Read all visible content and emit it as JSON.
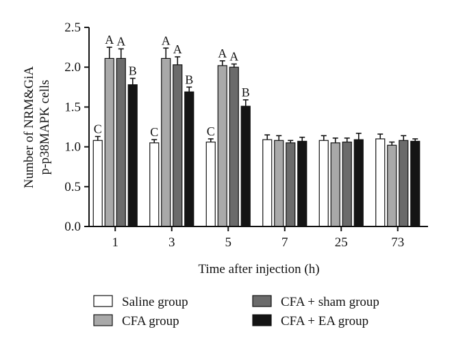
{
  "chart_data": {
    "type": "bar",
    "title": "",
    "xlabel": "Time after injection (h)",
    "ylabel_lines": [
      "Number of NRM&GiA",
      "p-p38MAPK cells"
    ],
    "ylim": [
      0,
      2.5
    ],
    "yticks": [
      "0.0",
      "0.5",
      "1.0",
      "1.5",
      "2.0",
      "2.5"
    ],
    "ytick_values": [
      0,
      0.5,
      1.0,
      1.5,
      2.0,
      2.5
    ],
    "categories": [
      "1",
      "3",
      "5",
      "7",
      "25",
      "73"
    ],
    "series": [
      {
        "name": "Saline group",
        "color": "#ffffff",
        "values": [
          1.08,
          1.05,
          1.06,
          1.09,
          1.08,
          1.1
        ],
        "errors": [
          0.05,
          0.04,
          0.04,
          0.06,
          0.06,
          0.06
        ],
        "letters": [
          "C",
          "C",
          "C",
          "",
          "",
          ""
        ]
      },
      {
        "name": "CFA group",
        "color": "#a9a9a9",
        "values": [
          2.11,
          2.11,
          2.02,
          1.08,
          1.05,
          1.02
        ],
        "errors": [
          0.14,
          0.13,
          0.06,
          0.06,
          0.06,
          0.04
        ],
        "letters": [
          "A",
          "A",
          "A",
          "",
          "",
          ""
        ]
      },
      {
        "name": "CFA + sham group",
        "color": "#6b6b6b",
        "values": [
          2.11,
          2.03,
          2.0,
          1.05,
          1.06,
          1.08
        ],
        "errors": [
          0.12,
          0.1,
          0.04,
          0.03,
          0.05,
          0.06
        ],
        "letters": [
          "A",
          "A",
          "A",
          "",
          "",
          ""
        ]
      },
      {
        "name": "CFA + EA group",
        "color": "#141414",
        "values": [
          1.78,
          1.69,
          1.51,
          1.07,
          1.09,
          1.07
        ],
        "errors": [
          0.08,
          0.06,
          0.08,
          0.05,
          0.08,
          0.03
        ],
        "letters": [
          "B",
          "B",
          "B",
          "",
          "",
          ""
        ]
      }
    ],
    "legend_position": "bottom",
    "grid": false
  }
}
